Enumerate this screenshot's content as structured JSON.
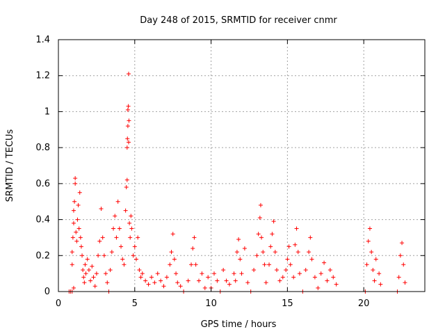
{
  "chart_data": {
    "type": "scatter",
    "title": "Day 248 of 2015, SRMTID for receiver cnmr",
    "xlabel": "GPS time / hours",
    "ylabel": "SRMTID / TECUs",
    "xlim": [
      0,
      24
    ],
    "ylim": [
      0,
      1.4
    ],
    "xticks": [
      0,
      5,
      10,
      15,
      20
    ],
    "xtick_labels": [
      "0",
      "5",
      "10",
      "15",
      "20"
    ],
    "yticks": [
      0,
      0.2,
      0.4,
      0.6,
      0.8,
      1.0,
      1.2,
      1.4
    ],
    "ytick_labels": [
      "0",
      "0.2",
      "0.4",
      "0.6",
      "0.8",
      "1",
      "1.2",
      "1.4"
    ],
    "grid": true,
    "marker": "plus",
    "color": "#ff0000",
    "series": [
      {
        "name": "SRMTID",
        "points": [
          [
            0.7,
            0.0
          ],
          [
            0.8,
            0.0
          ],
          [
            0.9,
            0.0
          ],
          [
            1.0,
            0.02
          ],
          [
            0.9,
            0.15
          ],
          [
            0.9,
            0.22
          ],
          [
            0.95,
            0.3
          ],
          [
            1.0,
            0.38
          ],
          [
            1.0,
            0.45
          ],
          [
            1.05,
            0.5
          ],
          [
            1.1,
            0.6
          ],
          [
            1.1,
            0.63
          ],
          [
            1.15,
            0.33
          ],
          [
            1.2,
            0.28
          ],
          [
            1.25,
            0.4
          ],
          [
            1.3,
            0.48
          ],
          [
            1.35,
            0.35
          ],
          [
            1.4,
            0.55
          ],
          [
            1.45,
            0.3
          ],
          [
            1.5,
            0.25
          ],
          [
            1.55,
            0.2
          ],
          [
            1.6,
            0.12
          ],
          [
            1.65,
            0.08
          ],
          [
            1.7,
            0.05
          ],
          [
            1.75,
            0.15
          ],
          [
            1.8,
            0.1
          ],
          [
            1.9,
            0.18
          ],
          [
            2.0,
            0.12
          ],
          [
            2.1,
            0.06
          ],
          [
            2.2,
            0.14
          ],
          [
            2.3,
            0.08
          ],
          [
            2.4,
            0.03
          ],
          [
            2.5,
            0.1
          ],
          [
            2.6,
            0.2
          ],
          [
            2.7,
            0.28
          ],
          [
            2.8,
            0.46
          ],
          [
            2.9,
            0.3
          ],
          [
            3.0,
            0.2
          ],
          [
            3.1,
            0.1
          ],
          [
            3.2,
            0.05
          ],
          [
            3.3,
            0.0
          ],
          [
            3.4,
            0.12
          ],
          [
            3.5,
            0.22
          ],
          [
            3.6,
            0.35
          ],
          [
            3.7,
            0.42
          ],
          [
            3.8,
            0.3
          ],
          [
            3.9,
            0.5
          ],
          [
            4.0,
            0.35
          ],
          [
            4.1,
            0.25
          ],
          [
            4.2,
            0.18
          ],
          [
            4.3,
            0.15
          ],
          [
            4.4,
            0.45
          ],
          [
            4.45,
            0.58
          ],
          [
            4.5,
            0.62
          ],
          [
            4.5,
            0.8
          ],
          [
            4.52,
            0.85
          ],
          [
            4.55,
            0.92
          ],
          [
            4.55,
            1.01
          ],
          [
            4.58,
            1.03
          ],
          [
            4.6,
            1.21
          ],
          [
            4.6,
            0.83
          ],
          [
            4.62,
            0.95
          ],
          [
            4.65,
            0.38
          ],
          [
            4.7,
            0.3
          ],
          [
            4.75,
            0.42
          ],
          [
            4.8,
            0.35
          ],
          [
            4.9,
            0.2
          ],
          [
            5.0,
            0.25
          ],
          [
            5.1,
            0.18
          ],
          [
            5.2,
            0.3
          ],
          [
            5.3,
            0.12
          ],
          [
            5.4,
            0.08
          ],
          [
            5.5,
            0.1
          ],
          [
            5.7,
            0.06
          ],
          [
            5.9,
            0.04
          ],
          [
            6.1,
            0.08
          ],
          [
            6.3,
            0.05
          ],
          [
            6.5,
            0.1
          ],
          [
            6.7,
            0.06
          ],
          [
            6.9,
            0.03
          ],
          [
            7.1,
            0.08
          ],
          [
            7.3,
            0.15
          ],
          [
            7.4,
            0.22
          ],
          [
            7.5,
            0.32
          ],
          [
            7.6,
            0.18
          ],
          [
            7.7,
            0.1
          ],
          [
            7.8,
            0.05
          ],
          [
            8.0,
            0.03
          ],
          [
            8.2,
            0.0
          ],
          [
            8.5,
            0.06
          ],
          [
            8.7,
            0.15
          ],
          [
            8.8,
            0.24
          ],
          [
            8.9,
            0.3
          ],
          [
            9.0,
            0.15
          ],
          [
            9.2,
            0.06
          ],
          [
            9.4,
            0.1
          ],
          [
            9.6,
            0.02
          ],
          [
            9.8,
            0.08
          ],
          [
            10.0,
            0.02
          ],
          [
            10.2,
            0.1
          ],
          [
            10.4,
            0.06
          ],
          [
            10.6,
            0.0
          ],
          [
            10.8,
            0.12
          ],
          [
            11.0,
            0.06
          ],
          [
            11.2,
            0.04
          ],
          [
            11.5,
            0.1
          ],
          [
            11.6,
            0.06
          ],
          [
            11.7,
            0.22
          ],
          [
            11.8,
            0.29
          ],
          [
            11.9,
            0.18
          ],
          [
            12.0,
            0.1
          ],
          [
            12.2,
            0.24
          ],
          [
            12.4,
            0.05
          ],
          [
            12.6,
            0.0
          ],
          [
            12.8,
            0.12
          ],
          [
            13.0,
            0.2
          ],
          [
            13.1,
            0.32
          ],
          [
            13.2,
            0.41
          ],
          [
            13.25,
            0.48
          ],
          [
            13.3,
            0.3
          ],
          [
            13.4,
            0.22
          ],
          [
            13.5,
            0.15
          ],
          [
            13.6,
            0.05
          ],
          [
            13.8,
            0.15
          ],
          [
            13.9,
            0.25
          ],
          [
            14.0,
            0.32
          ],
          [
            14.1,
            0.39
          ],
          [
            14.2,
            0.22
          ],
          [
            14.3,
            0.12
          ],
          [
            14.5,
            0.06
          ],
          [
            14.7,
            0.08
          ],
          [
            14.9,
            0.12
          ],
          [
            15.0,
            0.18
          ],
          [
            15.1,
            0.25
          ],
          [
            15.2,
            0.15
          ],
          [
            15.4,
            0.08
          ],
          [
            15.5,
            0.26
          ],
          [
            15.6,
            0.35
          ],
          [
            15.7,
            0.22
          ],
          [
            15.8,
            0.1
          ],
          [
            16.0,
            0.0
          ],
          [
            16.2,
            0.12
          ],
          [
            16.4,
            0.22
          ],
          [
            16.5,
            0.3
          ],
          [
            16.6,
            0.18
          ],
          [
            16.8,
            0.08
          ],
          [
            17.0,
            0.02
          ],
          [
            17.2,
            0.1
          ],
          [
            17.4,
            0.16
          ],
          [
            17.6,
            0.06
          ],
          [
            17.8,
            0.12
          ],
          [
            18.0,
            0.08
          ],
          [
            18.2,
            0.04
          ],
          [
            20.1,
            0.0
          ],
          [
            20.2,
            0.15
          ],
          [
            20.3,
            0.28
          ],
          [
            20.4,
            0.35
          ],
          [
            20.5,
            0.22
          ],
          [
            20.6,
            0.12
          ],
          [
            20.7,
            0.06
          ],
          [
            20.8,
            0.18
          ],
          [
            21.0,
            0.1
          ],
          [
            21.1,
            0.04
          ],
          [
            22.2,
            0.0
          ],
          [
            22.3,
            0.08
          ],
          [
            22.4,
            0.2
          ],
          [
            22.5,
            0.27
          ],
          [
            22.6,
            0.15
          ],
          [
            22.7,
            0.05
          ]
        ]
      }
    ]
  }
}
